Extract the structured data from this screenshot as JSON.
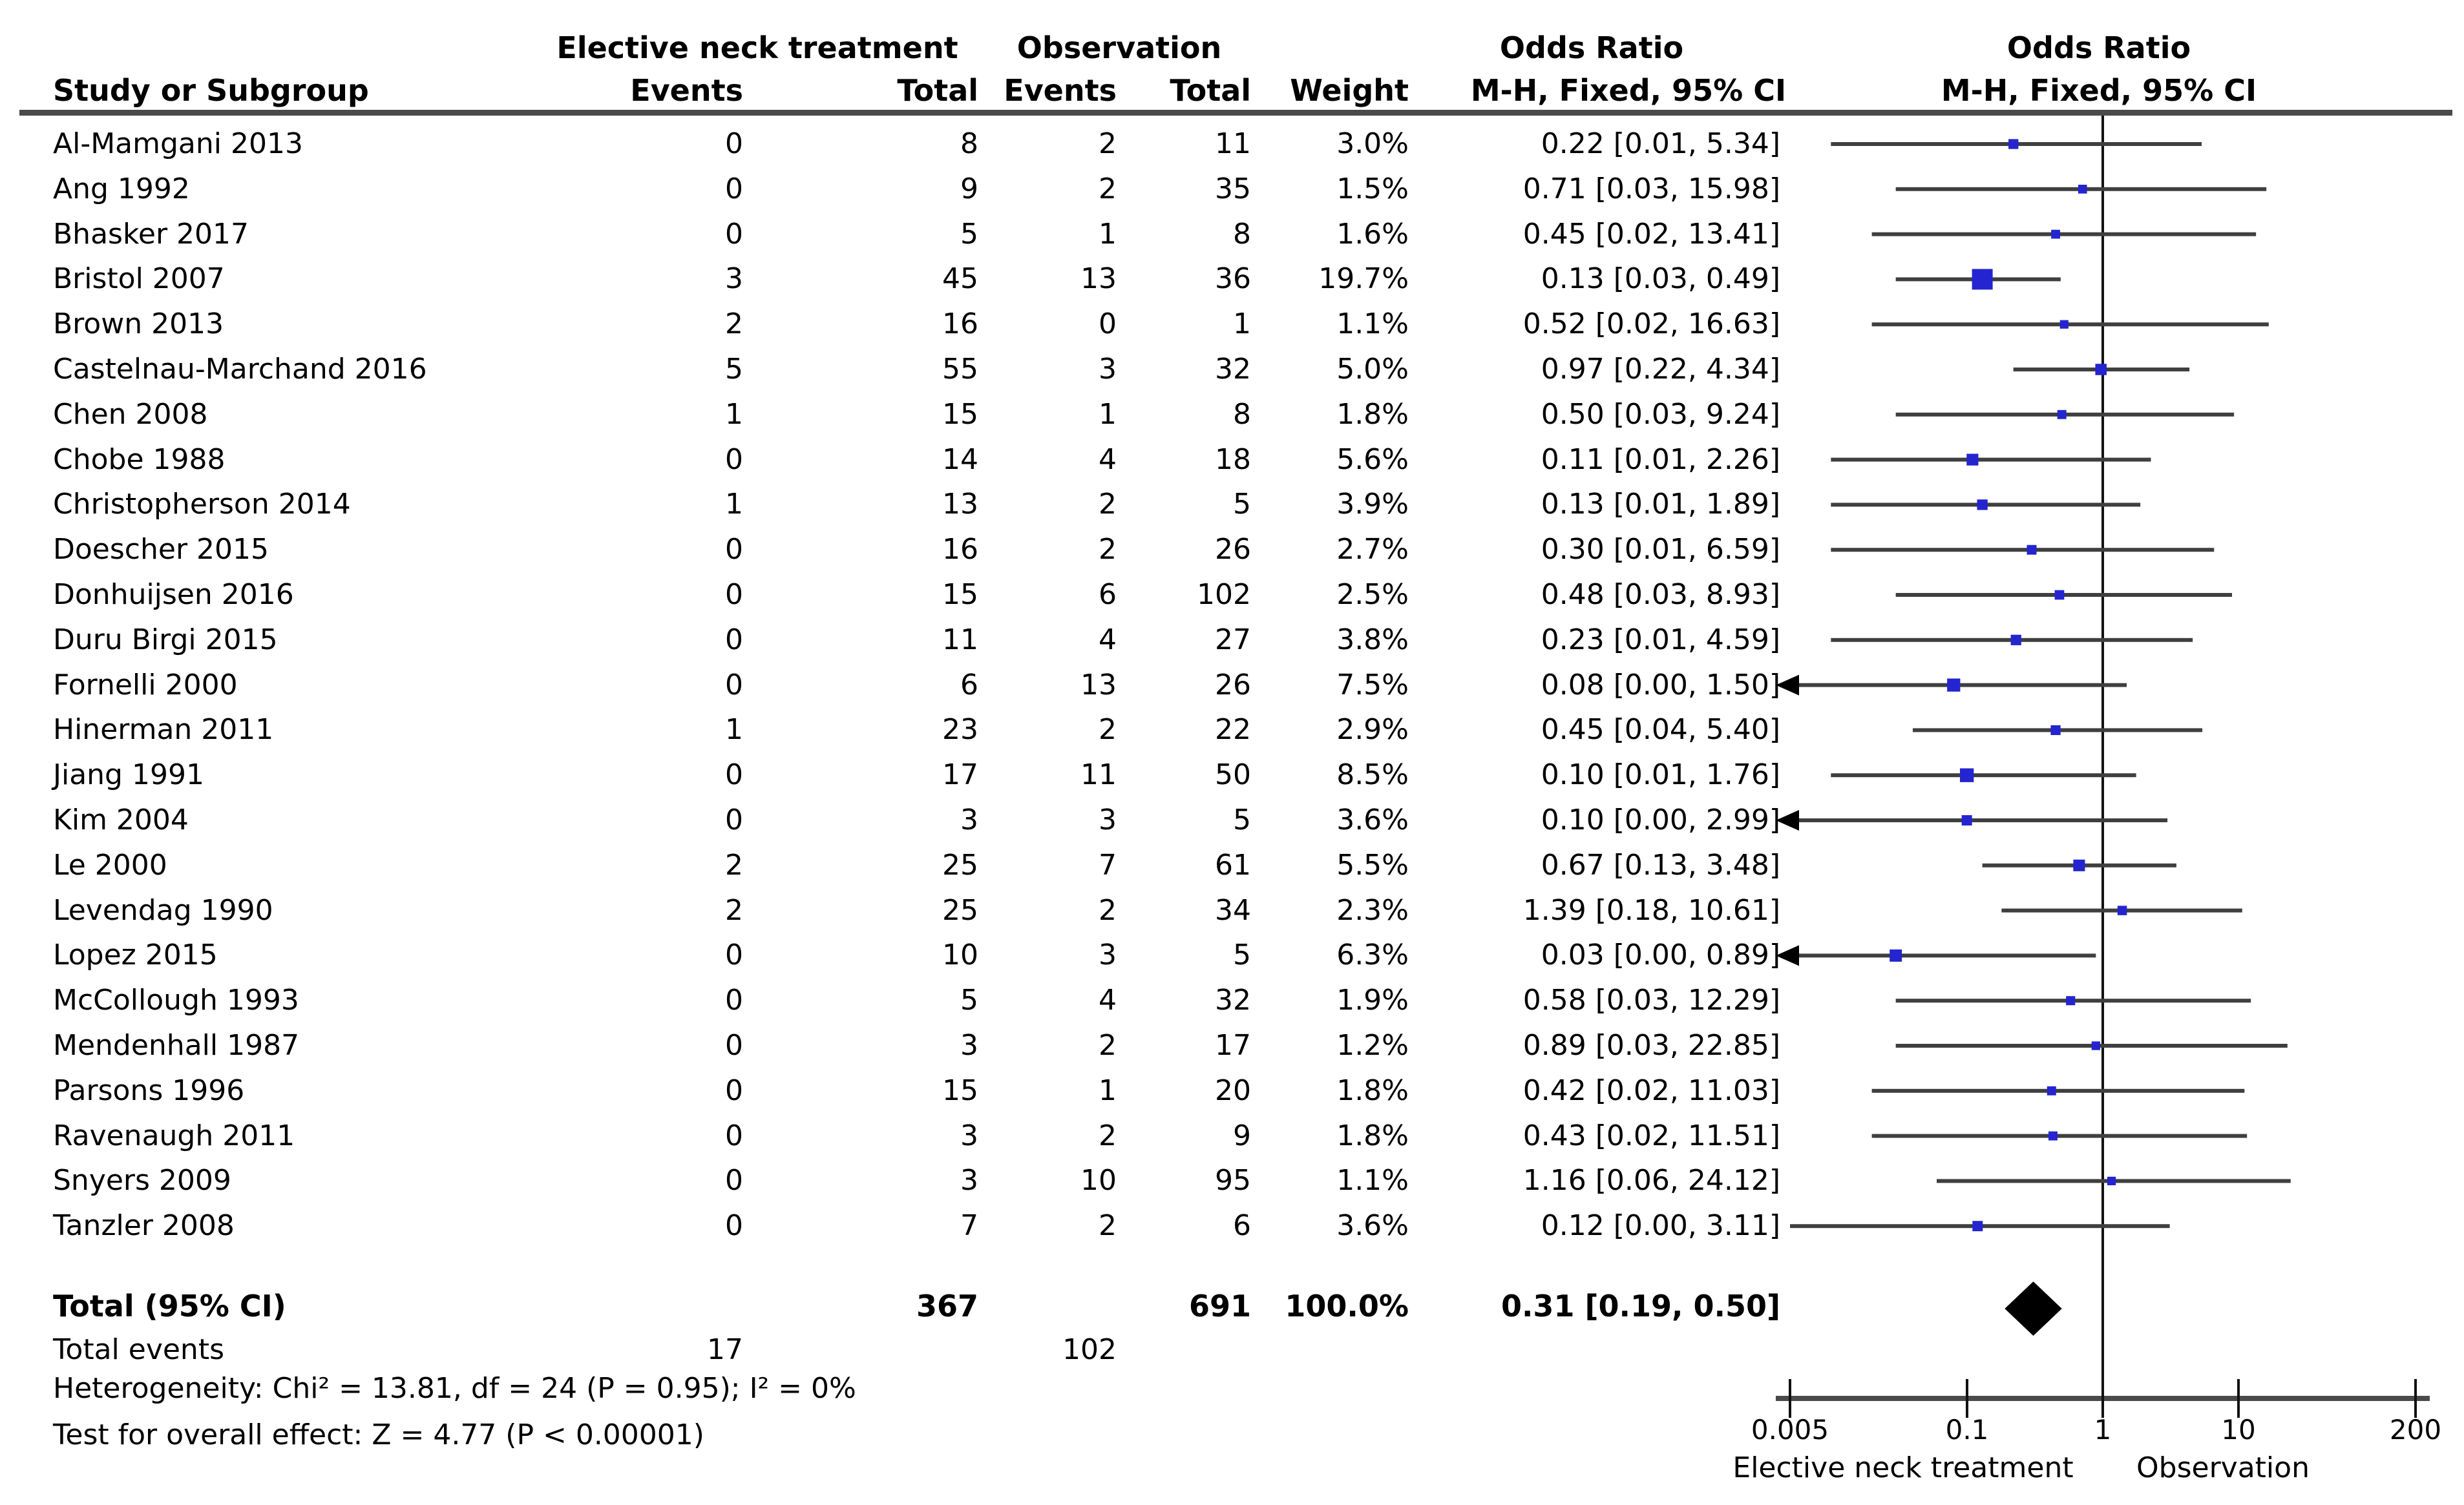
{
  "chart_data": {
    "type": "forest",
    "effect_measure": "Odds Ratio, M-H, Fixed, 95% CI",
    "header": {
      "study_col": "Study or Subgroup",
      "group1": "Elective neck treatment",
      "group2": "Observation",
      "events": "Events",
      "total": "Total",
      "weight": "Weight",
      "or_left_title": "Odds Ratio",
      "or_left_sub": "M-H, Fixed, 95% CI",
      "or_right_title": "Odds Ratio",
      "or_right_sub": "M-H, Fixed, 95% CI"
    },
    "studies": [
      {
        "name": "Al-Mamgani 2013",
        "events1": 0,
        "total1": 8,
        "events2": 2,
        "total2": 11,
        "weight": "3.0%",
        "weight_pct": 3.0,
        "or_ci": "0.22 [0.01, 5.34]",
        "or": 0.22,
        "ci_low": 0.01,
        "ci_high": 5.34,
        "arrow_low": false
      },
      {
        "name": "Ang 1992",
        "events1": 0,
        "total1": 9,
        "events2": 2,
        "total2": 35,
        "weight": "1.5%",
        "weight_pct": 1.5,
        "or_ci": "0.71 [0.03, 15.98]",
        "or": 0.71,
        "ci_low": 0.03,
        "ci_high": 15.98,
        "arrow_low": false
      },
      {
        "name": "Bhasker 2017",
        "events1": 0,
        "total1": 5,
        "events2": 1,
        "total2": 8,
        "weight": "1.6%",
        "weight_pct": 1.6,
        "or_ci": "0.45 [0.02, 13.41]",
        "or": 0.45,
        "ci_low": 0.02,
        "ci_high": 13.41,
        "arrow_low": false
      },
      {
        "name": "Bristol 2007",
        "events1": 3,
        "total1": 45,
        "events2": 13,
        "total2": 36,
        "weight": "19.7%",
        "weight_pct": 19.7,
        "or_ci": "0.13 [0.03, 0.49]",
        "or": 0.13,
        "ci_low": 0.03,
        "ci_high": 0.49,
        "arrow_low": false
      },
      {
        "name": "Brown 2013",
        "events1": 2,
        "total1": 16,
        "events2": 0,
        "total2": 1,
        "weight": "1.1%",
        "weight_pct": 1.1,
        "or_ci": "0.52 [0.02, 16.63]",
        "or": 0.52,
        "ci_low": 0.02,
        "ci_high": 16.63,
        "arrow_low": false
      },
      {
        "name": "Castelnau-Marchand 2016",
        "events1": 5,
        "total1": 55,
        "events2": 3,
        "total2": 32,
        "weight": "5.0%",
        "weight_pct": 5.0,
        "or_ci": "0.97 [0.22, 4.34]",
        "or": 0.97,
        "ci_low": 0.22,
        "ci_high": 4.34,
        "arrow_low": false
      },
      {
        "name": "Chen 2008",
        "events1": 1,
        "total1": 15,
        "events2": 1,
        "total2": 8,
        "weight": "1.8%",
        "weight_pct": 1.8,
        "or_ci": "0.50 [0.03, 9.24]",
        "or": 0.5,
        "ci_low": 0.03,
        "ci_high": 9.24,
        "arrow_low": false
      },
      {
        "name": "Chobe 1988",
        "events1": 0,
        "total1": 14,
        "events2": 4,
        "total2": 18,
        "weight": "5.6%",
        "weight_pct": 5.6,
        "or_ci": "0.11 [0.01, 2.26]",
        "or": 0.11,
        "ci_low": 0.01,
        "ci_high": 2.26,
        "arrow_low": false
      },
      {
        "name": "Christopherson 2014",
        "events1": 1,
        "total1": 13,
        "events2": 2,
        "total2": 5,
        "weight": "3.9%",
        "weight_pct": 3.9,
        "or_ci": "0.13 [0.01, 1.89]",
        "or": 0.13,
        "ci_low": 0.01,
        "ci_high": 1.89,
        "arrow_low": false
      },
      {
        "name": "Doescher 2015",
        "events1": 0,
        "total1": 16,
        "events2": 2,
        "total2": 26,
        "weight": "2.7%",
        "weight_pct": 2.7,
        "or_ci": "0.30 [0.01, 6.59]",
        "or": 0.3,
        "ci_low": 0.01,
        "ci_high": 6.59,
        "arrow_low": false
      },
      {
        "name": "Donhuijsen 2016",
        "events1": 0,
        "total1": 15,
        "events2": 6,
        "total2": 102,
        "weight": "2.5%",
        "weight_pct": 2.5,
        "or_ci": "0.48 [0.03, 8.93]",
        "or": 0.48,
        "ci_low": 0.03,
        "ci_high": 8.93,
        "arrow_low": false
      },
      {
        "name": "Duru Birgi 2015",
        "events1": 0,
        "total1": 11,
        "events2": 4,
        "total2": 27,
        "weight": "3.8%",
        "weight_pct": 3.8,
        "or_ci": "0.23 [0.01, 4.59]",
        "or": 0.23,
        "ci_low": 0.01,
        "ci_high": 4.59,
        "arrow_low": false
      },
      {
        "name": "Fornelli 2000",
        "events1": 0,
        "total1": 6,
        "events2": 13,
        "total2": 26,
        "weight": "7.5%",
        "weight_pct": 7.5,
        "or_ci": "0.08 [0.00, 1.50]",
        "or": 0.08,
        "ci_low": 0.005,
        "ci_high": 1.5,
        "arrow_low": true
      },
      {
        "name": "Hinerman 2011",
        "events1": 1,
        "total1": 23,
        "events2": 2,
        "total2": 22,
        "weight": "2.9%",
        "weight_pct": 2.9,
        "or_ci": "0.45 [0.04, 5.40]",
        "or": 0.45,
        "ci_low": 0.04,
        "ci_high": 5.4,
        "arrow_low": false
      },
      {
        "name": "Jiang 1991",
        "events1": 0,
        "total1": 17,
        "events2": 11,
        "total2": 50,
        "weight": "8.5%",
        "weight_pct": 8.5,
        "or_ci": "0.10 [0.01, 1.76]",
        "or": 0.1,
        "ci_low": 0.01,
        "ci_high": 1.76,
        "arrow_low": false
      },
      {
        "name": "Kim 2004",
        "events1": 0,
        "total1": 3,
        "events2": 3,
        "total2": 5,
        "weight": "3.6%",
        "weight_pct": 3.6,
        "or_ci": "0.10 [0.00, 2.99]",
        "or": 0.1,
        "ci_low": 0.005,
        "ci_high": 2.99,
        "arrow_low": true
      },
      {
        "name": "Le 2000",
        "events1": 2,
        "total1": 25,
        "events2": 7,
        "total2": 61,
        "weight": "5.5%",
        "weight_pct": 5.5,
        "or_ci": "0.67 [0.13, 3.48]",
        "or": 0.67,
        "ci_low": 0.13,
        "ci_high": 3.48,
        "arrow_low": false
      },
      {
        "name": "Levendag 1990",
        "events1": 2,
        "total1": 25,
        "events2": 2,
        "total2": 34,
        "weight": "2.3%",
        "weight_pct": 2.3,
        "or_ci": "1.39 [0.18, 10.61]",
        "or": 1.39,
        "ci_low": 0.18,
        "ci_high": 10.61,
        "arrow_low": false
      },
      {
        "name": "Lopez 2015",
        "events1": 0,
        "total1": 10,
        "events2": 3,
        "total2": 5,
        "weight": "6.3%",
        "weight_pct": 6.3,
        "or_ci": "0.03 [0.00, 0.89]",
        "or": 0.03,
        "ci_low": 0.005,
        "ci_high": 0.89,
        "arrow_low": true
      },
      {
        "name": "McCollough 1993",
        "events1": 0,
        "total1": 5,
        "events2": 4,
        "total2": 32,
        "weight": "1.9%",
        "weight_pct": 1.9,
        "or_ci": "0.58 [0.03, 12.29]",
        "or": 0.58,
        "ci_low": 0.03,
        "ci_high": 12.29,
        "arrow_low": false
      },
      {
        "name": "Mendenhall 1987",
        "events1": 0,
        "total1": 3,
        "events2": 2,
        "total2": 17,
        "weight": "1.2%",
        "weight_pct": 1.2,
        "or_ci": "0.89 [0.03, 22.85]",
        "or": 0.89,
        "ci_low": 0.03,
        "ci_high": 22.85,
        "arrow_low": false
      },
      {
        "name": "Parsons 1996",
        "events1": 0,
        "total1": 15,
        "events2": 1,
        "total2": 20,
        "weight": "1.8%",
        "weight_pct": 1.8,
        "or_ci": "0.42 [0.02, 11.03]",
        "or": 0.42,
        "ci_low": 0.02,
        "ci_high": 11.03,
        "arrow_low": false
      },
      {
        "name": "Ravenaugh 2011",
        "events1": 0,
        "total1": 3,
        "events2": 2,
        "total2": 9,
        "weight": "1.8%",
        "weight_pct": 1.8,
        "or_ci": "0.43 [0.02, 11.51]",
        "or": 0.43,
        "ci_low": 0.02,
        "ci_high": 11.51,
        "arrow_low": false
      },
      {
        "name": "Snyers 2009",
        "events1": 0,
        "total1": 3,
        "events2": 10,
        "total2": 95,
        "weight": "1.1%",
        "weight_pct": 1.1,
        "or_ci": "1.16 [0.06, 24.12]",
        "or": 1.16,
        "ci_low": 0.06,
        "ci_high": 24.12,
        "arrow_low": false
      },
      {
        "name": "Tanzler 2008",
        "events1": 0,
        "total1": 7,
        "events2": 2,
        "total2": 6,
        "weight": "3.6%",
        "weight_pct": 3.6,
        "or_ci": "0.12 [0.00, 3.11]",
        "or": 0.12,
        "ci_low": 0.005,
        "ci_high": 3.11,
        "arrow_low": false
      }
    ],
    "total": {
      "label": "Total (95% CI)",
      "total1": 367,
      "total2": 691,
      "weight": "100.0%",
      "or_ci": "0.31 [0.19, 0.50]",
      "or": 0.31,
      "ci_low": 0.19,
      "ci_high": 0.5
    },
    "total_events": {
      "label": "Total events",
      "events1": 17,
      "events2": 102
    },
    "heterogeneity": "Heterogeneity: Chi² = 13.81, df = 24 (P = 0.95); I² = 0%",
    "overall_effect": "Test for overall effect: Z = 4.77 (P < 0.00001)",
    "axis": {
      "scale": "log",
      "min": 0.005,
      "max": 200,
      "tick_values": [
        0.005,
        0.1,
        1,
        10,
        200
      ],
      "tick_labels": [
        "0.005",
        "0.1",
        "1",
        "10",
        "200"
      ],
      "left_caption": "Elective neck treatment",
      "right_caption": "Observation"
    },
    "colors": {
      "marker_square": "#2424d0",
      "ci_line": "#3f3f3f",
      "diamond": "#000000",
      "axis_line": "#4a4a4a",
      "rule_line": "#4a4a4a",
      "null_line": "#111111",
      "text": "#000000",
      "background": "#ffffff"
    }
  }
}
